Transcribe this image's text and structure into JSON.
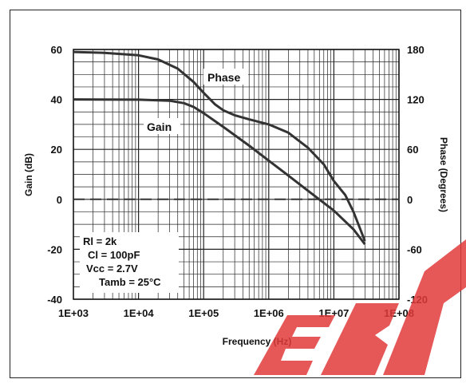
{
  "chart_data": {
    "type": "line",
    "xlabel": "Frequency (Hz)",
    "ylabel": "Gain (dB)",
    "y2label": "Phase (Degrees)",
    "x_scale": "log",
    "xlim": [
      1000,
      100000000
    ],
    "ylim": [
      -40,
      60
    ],
    "y2lim": [
      -120,
      180
    ],
    "grid": true,
    "x_ticks": [
      "1E+03",
      "1E+04",
      "1E+05",
      "1E+06",
      "1E+07",
      "1E+08"
    ],
    "y_ticks": [
      "60",
      "40",
      "20",
      "0",
      "-20",
      "-40"
    ],
    "y2_ticks": [
      "180",
      "120",
      "60",
      "0",
      "-60",
      "-120"
    ],
    "series": [
      {
        "name": "Phase",
        "axis": "right",
        "x": [
          1000,
          3000,
          10000,
          20000,
          40000,
          70000,
          100000,
          150000,
          200000,
          300000,
          500000,
          1000000,
          2000000,
          4000000,
          7000000,
          10000000,
          15000000,
          20000000,
          30000000
        ],
        "y": [
          177,
          176,
          173,
          168,
          157,
          141,
          128,
          114,
          107,
          101,
          96,
          90,
          80,
          62,
          42,
          22,
          5,
          -15,
          -50
        ]
      },
      {
        "name": "Gain",
        "axis": "left",
        "x": [
          1000,
          10000,
          30000,
          50000,
          70000,
          100000,
          200000,
          500000,
          1000000,
          2000000,
          5000000,
          10000000,
          20000000,
          30000000
        ],
        "y": [
          40,
          39.9,
          39.5,
          38.5,
          37,
          34.5,
          29,
          21.5,
          15.5,
          9.5,
          1.5,
          -4.5,
          -12,
          -18
        ]
      },
      {
        "name": "0 dB",
        "axis": "left",
        "style": "dashed",
        "x": [
          1000,
          100000000
        ],
        "y": [
          0,
          0
        ]
      }
    ],
    "annotations": {
      "phase_label": "Phase",
      "gain_label": "Gain",
      "conditions": [
        "Rl = 2k",
        "Cl = 100pF",
        "Vcc = 2.7V",
        "Tamb = 25°C"
      ]
    }
  },
  "watermark": {
    "text": "EBP",
    "color": "#e23b3b"
  },
  "colors": {
    "curve": "#333333",
    "grid": "#222222",
    "watermark": "#e23b3b"
  }
}
